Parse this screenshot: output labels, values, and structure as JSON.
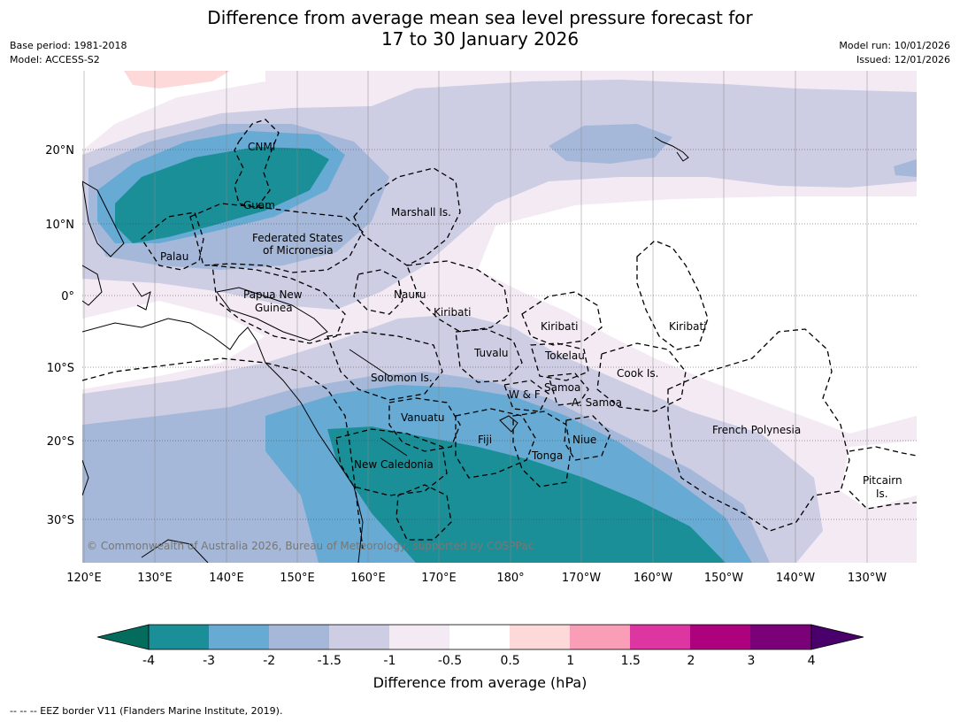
{
  "header": {
    "title_line1": "Difference from average mean sea level pressure forecast for",
    "title_line2": "17 to 30 January 2026",
    "base_period": "Base period: 1981-2018",
    "model": "Model: ACCESS-S2",
    "model_run": "Model run: 10/01/2026",
    "issued": "Issued: 12/01/2026"
  },
  "map": {
    "lon_labels": [
      "120°E",
      "130°E",
      "140°E",
      "150°E",
      "160°E",
      "170°E",
      "180°",
      "170°W",
      "160°W",
      "150°W",
      "140°W",
      "130°W"
    ],
    "lat_labels": [
      "20°N",
      "10°N",
      "0°",
      "10°S",
      "20°S",
      "30°S"
    ],
    "places": {
      "cnmi": "CNMI",
      "guam": "Guam",
      "marshall": "Marshall Is.",
      "fsm1": "Federated States",
      "fsm2": "of Micronesia",
      "palau": "Palau",
      "png1": "Papua New",
      "png2": "Guinea",
      "nauru": "Nauru",
      "kiribati_w": "Kiribati",
      "kiribati_c": "Kiribati",
      "kiribati_e": "Kiribati",
      "tuvalu": "Tuvalu",
      "tokelau": "Tokelau",
      "cook": "Cook Is.",
      "solomon": "Solomon Is.",
      "wf": "W & F",
      "samoa": "Samoa",
      "asamoa": "A. Samoa",
      "vanuatu": "Vanuatu",
      "fiji": "Fiji",
      "niue": "Niue",
      "tonga": "Tonga",
      "newcal": "New Caledonia",
      "frpoly": "French Polynesia",
      "pitcairn1": "Pitcairn",
      "pitcairn2": "Is."
    },
    "copyright": "© Commonwealth of Australia 2026, Bureau of Meteorology, supported by COSPPac"
  },
  "colorbar": {
    "label": "Difference from average (hPa)",
    "ticks": [
      "-4",
      "-3",
      "-2",
      "-1.5",
      "-1",
      "-0.5",
      "0.5",
      "1",
      "1.5",
      "2",
      "3",
      "4"
    ],
    "colors": {
      "lt_-4": "#046c5c",
      "-4_-3": "#1a8f97",
      "-3_-2": "#67aad3",
      "-2_-1.5": "#a5b8d9",
      "-1.5_-1": "#cdcde4",
      "-1_-0.5": "#f3eaf4",
      "-0.5_0.5": "#ffffff",
      "0.5_1": "#fdd9d9",
      "1_1.5": "#f99eb6",
      "1.5_2": "#dd36a0",
      "2_3": "#ae017e",
      "3_4": "#7a0177",
      "gt_4": "#49006a"
    }
  },
  "footer": {
    "eez_note": "--  --  -- EEZ border V11 (Flanders Marine Institute, 2019)."
  }
}
